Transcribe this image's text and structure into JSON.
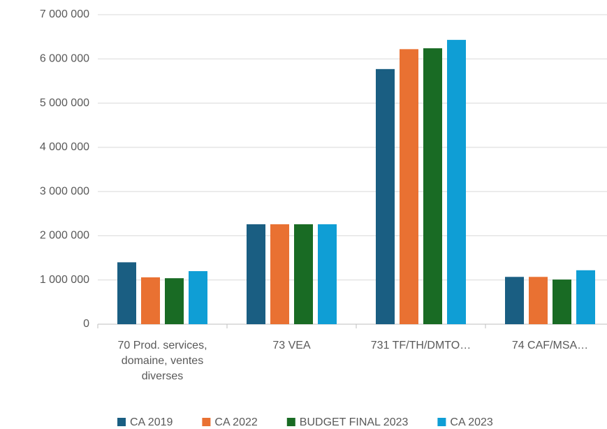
{
  "chart_data": {
    "type": "bar",
    "categories": [
      "70 Prod. services, domaine, ventes diverses",
      "73 VEA",
      "731 TF/TH/DMTO…",
      "74 CAF/MSA…"
    ],
    "series": [
      {
        "name": "CA 2019",
        "color": "#1a5e82",
        "values": [
          1400000,
          2260000,
          5770000,
          1070000
        ]
      },
      {
        "name": "CA 2022",
        "color": "#e97132",
        "values": [
          1060000,
          2260000,
          6220000,
          1070000
        ]
      },
      {
        "name": "BUDGET FINAL 2023",
        "color": "#196b24",
        "values": [
          1040000,
          2260000,
          6240000,
          1010000
        ]
      },
      {
        "name": "CA 2023",
        "color": "#0f9ed5",
        "values": [
          1200000,
          2260000,
          6430000,
          1220000
        ]
      }
    ],
    "ylim": [
      0,
      7000000
    ],
    "yticks": [
      0,
      {
        "value": 1000000,
        "label": "1 000 000"
      },
      {
        "value": 2000000,
        "label": "2 000 000"
      },
      {
        "value": 3000000,
        "label": "3 000 000"
      },
      {
        "value": 4000000,
        "label": "4 000 000"
      },
      {
        "value": 5000000,
        "label": "5 000 000"
      },
      {
        "value": 6000000,
        "label": "6 000 000"
      },
      {
        "value": 7000000,
        "label": "7 000 000"
      }
    ],
    "grid": true,
    "legend": "bottom"
  }
}
